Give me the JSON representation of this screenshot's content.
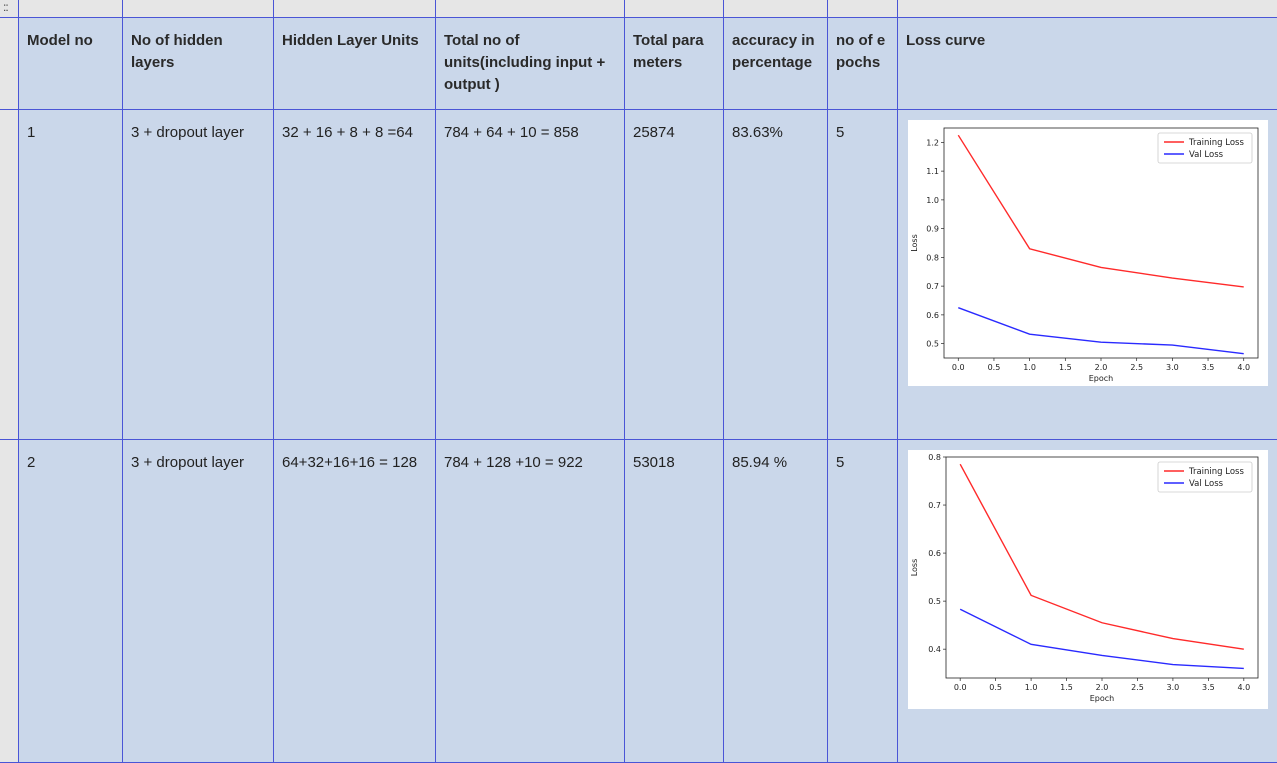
{
  "grip_glyph": "::",
  "headers": {
    "model_no": "Model no",
    "hidden_layers": "No of hidden layers",
    "hidden_units": "Hidden Layer Units",
    "total_units": "Total no of units(including input + output )",
    "total_params": "Total parameters",
    "accuracy": "accuracy in percentage",
    "epochs": "no of epochs",
    "loss_curve": "Loss curve"
  },
  "rows": [
    {
      "model_no": "1",
      "hidden_layers": "3 + dropout layer",
      "hidden_units": "32 + 16 + 8 + 8 =64",
      "total_units": "784 + 64 + 10 = 858",
      "total_params": "25874",
      "accuracy": "83.63%",
      "epochs": "5"
    },
    {
      "model_no": "2",
      "hidden_layers": "3 + dropout layer",
      "hidden_units": "64+32+16+16 = 128",
      "total_units": "784 + 128 +10 = 922",
      "total_params": "53018",
      "accuracy": "85.94 %",
      "epochs": "5"
    }
  ],
  "colors": {
    "training": "#ff2a2a",
    "val": "#2a2aff",
    "grid_line": "#4a55d6",
    "cell_bg": "#cad7ea"
  },
  "chart_data": [
    {
      "type": "line",
      "x": [
        0,
        1,
        2,
        3,
        4
      ],
      "series": [
        {
          "name": "Training Loss",
          "values": [
            1.225,
            0.83,
            0.765,
            0.728,
            0.697
          ]
        },
        {
          "name": "Val Loss",
          "values": [
            0.625,
            0.533,
            0.505,
            0.495,
            0.465
          ]
        }
      ],
      "xlabel": "Epoch",
      "ylabel": "Loss",
      "xlim": [
        -0.2,
        4.2
      ],
      "ylim": [
        0.45,
        1.25
      ],
      "xticks": [
        0.0,
        0.5,
        1.0,
        1.5,
        2.0,
        2.5,
        3.0,
        3.5,
        4.0
      ],
      "xtick_labels": [
        "0.0",
        "0.5",
        "1.0",
        "1.5",
        "2.0",
        "2.5",
        "3.0",
        "3.5",
        "4.0"
      ],
      "yticks": [
        0.5,
        0.6,
        0.7,
        0.8,
        0.9,
        1.0,
        1.1,
        1.2
      ],
      "ytick_labels": [
        "0.5",
        "0.6",
        "0.7",
        "0.8",
        "0.9",
        "1.0",
        "1.1",
        "1.2"
      ],
      "legend": "top-right"
    },
    {
      "type": "line",
      "x": [
        0,
        1,
        2,
        3,
        4
      ],
      "series": [
        {
          "name": "Training Loss",
          "values": [
            0.785,
            0.512,
            0.455,
            0.422,
            0.4
          ]
        },
        {
          "name": "Val Loss",
          "values": [
            0.483,
            0.41,
            0.387,
            0.368,
            0.36
          ]
        }
      ],
      "xlabel": "Epoch",
      "ylabel": "Loss",
      "xlim": [
        -0.2,
        4.2
      ],
      "ylim": [
        0.34,
        0.8
      ],
      "xticks": [
        0.0,
        0.5,
        1.0,
        1.5,
        2.0,
        2.5,
        3.0,
        3.5,
        4.0
      ],
      "xtick_labels": [
        "0.0",
        "0.5",
        "1.0",
        "1.5",
        "2.0",
        "2.5",
        "3.0",
        "3.5",
        "4.0"
      ],
      "yticks": [
        0.4,
        0.5,
        0.6,
        0.7,
        0.8
      ],
      "ytick_labels": [
        "0.4",
        "0.5",
        "0.6",
        "0.7",
        "0.8"
      ],
      "legend": "top-right"
    }
  ]
}
